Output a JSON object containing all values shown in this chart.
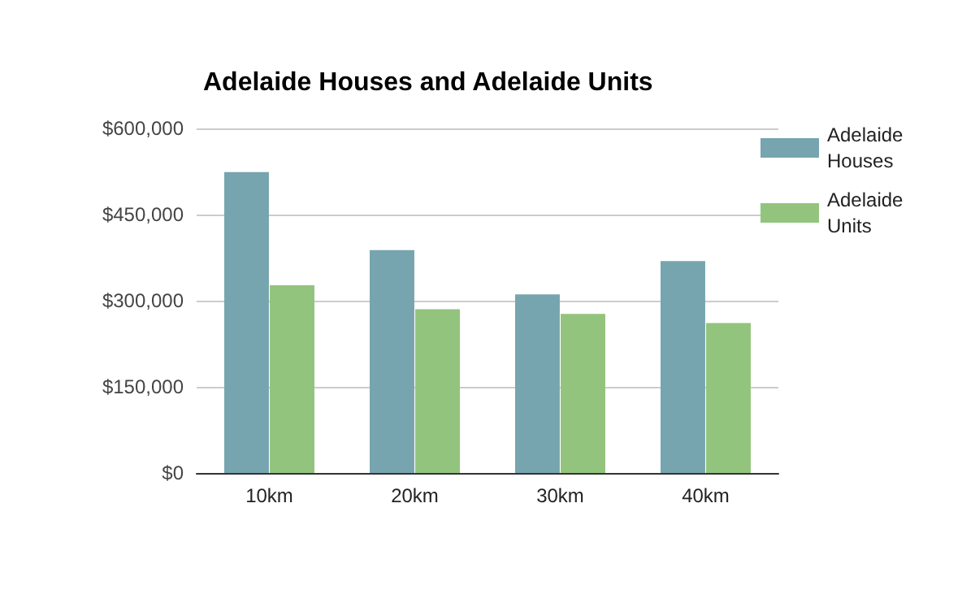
{
  "chart_data": {
    "type": "bar",
    "title": "Adelaide Houses and Adelaide Units",
    "categories": [
      "10km",
      "20km",
      "30km",
      "40km"
    ],
    "series": [
      {
        "name": "Adelaide Houses",
        "color": "#76a5af",
        "values": [
          524000,
          388000,
          311000,
          369000
        ]
      },
      {
        "name": "Adelaide Units",
        "color": "#93c47d",
        "values": [
          327000,
          285000,
          277000,
          261000
        ]
      }
    ],
    "ylim": [
      0,
      600000
    ],
    "yticks": [
      {
        "value": 0,
        "label": "$0"
      },
      {
        "value": 150000,
        "label": "$150,000"
      },
      {
        "value": 300000,
        "label": "$300,000"
      },
      {
        "value": 450000,
        "label": "$450,000"
      },
      {
        "value": 600000,
        "label": "$600,000"
      }
    ],
    "grid": "y",
    "legend": "right"
  }
}
